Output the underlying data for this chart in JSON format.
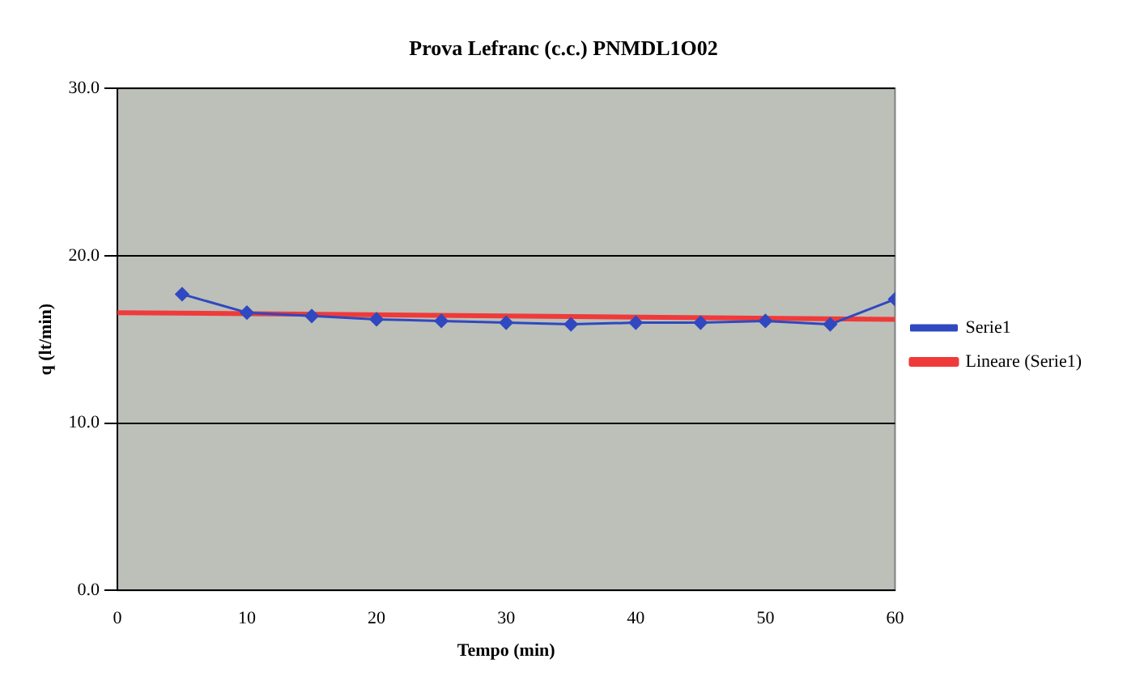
{
  "chart_data": {
    "type": "line",
    "title": "Prova Lefranc (c.c.) PNMDL1O02",
    "xlabel": "Tempo (min)",
    "ylabel": "q (lt/min)",
    "x": [
      5,
      10,
      15,
      20,
      25,
      30,
      35,
      40,
      45,
      50,
      55,
      60
    ],
    "series": [
      {
        "name": "Serie1",
        "color": "#3048c0",
        "values": [
          17.7,
          16.6,
          16.4,
          16.2,
          16.1,
          16.0,
          15.9,
          16.0,
          16.0,
          16.1,
          15.9,
          17.4
        ],
        "marker": "diamond"
      },
      {
        "name": "Lineare (Serie1)",
        "color": "#f03a3a",
        "x": [
          0,
          60
        ],
        "values": [
          16.6,
          16.2
        ],
        "marker": "none"
      }
    ],
    "xlim": [
      0,
      60
    ],
    "xticks": [
      0,
      10,
      20,
      30,
      40,
      50,
      60
    ],
    "ylim": [
      0,
      30
    ],
    "yticks": [
      {
        "value": 0,
        "label": "0.0"
      },
      {
        "value": 10,
        "label": "10.0"
      },
      {
        "value": 20,
        "label": "20.0"
      },
      {
        "value": 30,
        "label": "30.0"
      }
    ],
    "grid": "y",
    "legend": "right",
    "line_style": "solid"
  }
}
